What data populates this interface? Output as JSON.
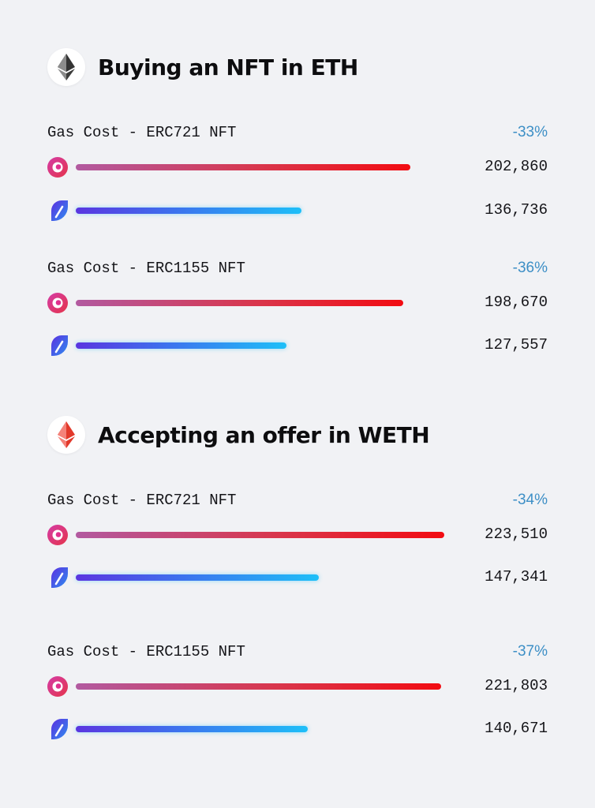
{
  "colors": {
    "background": "#f1f2f5",
    "percent_text": "#3d8fc6",
    "marketplace_a_bar": [
      "#b25aa0",
      "#f20c12"
    ],
    "marketplace_b_bar": [
      "#5a36e0",
      "#1dbff8"
    ]
  },
  "icons": {
    "section_0": "ethereum-black-icon",
    "section_1": "ethereum-red-icon",
    "marketplace_a": "pink-marketplace-logo-icon",
    "marketplace_b": "blue-marketplace-logo-icon"
  },
  "sections": [
    {
      "title": "Buying an NFT in ETH",
      "groups": [
        {
          "label": "Gas Cost - ERC721 NFT",
          "percent": "-33%",
          "rows": [
            {
              "value": 202860,
              "display": "202,860"
            },
            {
              "value": 136736,
              "display": "136,736"
            }
          ]
        },
        {
          "label": "Gas Cost - ERC1155 NFT",
          "percent": "-36%",
          "rows": [
            {
              "value": 198670,
              "display": "198,670"
            },
            {
              "value": 127557,
              "display": "127,557"
            }
          ]
        }
      ]
    },
    {
      "title": "Accepting an offer in WETH",
      "groups": [
        {
          "label": "Gas Cost - ERC721 NFT",
          "percent": "-34%",
          "rows": [
            {
              "value": 223510,
              "display": "223,510"
            },
            {
              "value": 147341,
              "display": "147,341"
            }
          ]
        },
        {
          "label": "Gas Cost - ERC1155 NFT",
          "percent": "-37%",
          "rows": [
            {
              "value": 221803,
              "display": "221,803"
            },
            {
              "value": 140671,
              "display": "140,671"
            }
          ]
        }
      ]
    }
  ],
  "chart_data": {
    "type": "bar",
    "orientation": "horizontal",
    "groups": [
      {
        "section": "Buying an NFT in ETH",
        "label": "Gas Cost - ERC721 NFT",
        "change": "-33%",
        "values": [
          202860,
          136736
        ]
      },
      {
        "section": "Buying an NFT in ETH",
        "label": "Gas Cost - ERC1155 NFT",
        "change": "-36%",
        "values": [
          198670,
          127557
        ]
      },
      {
        "section": "Accepting an offer in WETH",
        "label": "Gas Cost - ERC721 NFT",
        "change": "-34%",
        "values": [
          223510,
          147341
        ]
      },
      {
        "section": "Accepting an offer in WETH",
        "label": "Gas Cost - ERC1155 NFT",
        "change": "-37%",
        "values": [
          221803,
          140671
        ]
      }
    ],
    "grid": false,
    "legend": "none"
  }
}
